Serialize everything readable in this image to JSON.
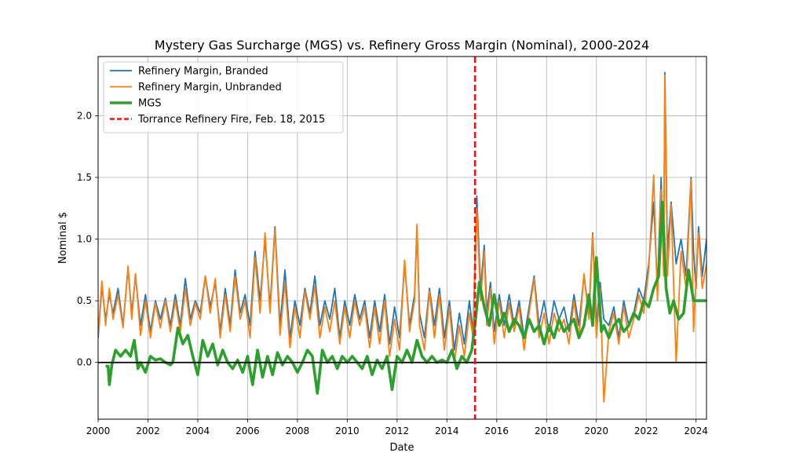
{
  "chart_data": {
    "type": "line",
    "title": "Mystery Gas Surcharge (MGS) vs. Refinery Gross Margin (Nominal), 2000-2024",
    "xlabel": "Date",
    "ylabel": "Nominal $",
    "xlim": [
      2000.0,
      2024.42
    ],
    "ylim": [
      -0.46,
      2.48
    ],
    "x_ticks": [
      2000,
      2002,
      2004,
      2006,
      2008,
      2010,
      2012,
      2014,
      2016,
      2018,
      2020,
      2022,
      2024
    ],
    "x_tick_labels": [
      "2000",
      "2002",
      "2004",
      "2006",
      "2008",
      "2010",
      "2012",
      "2014",
      "2016",
      "2018",
      "2020",
      "2022",
      "2024"
    ],
    "y_ticks": [
      0.0,
      0.5,
      1.0,
      1.5,
      2.0
    ],
    "y_tick_labels": [
      "0.0",
      "0.5",
      "1.0",
      "1.5",
      "2.0"
    ],
    "grid": true,
    "legend_position": "top-left",
    "zero_line": 0.0,
    "event": {
      "name": "Torrance Refinery Fire, Feb. 18, 2015",
      "x": 2015.13,
      "color": "#ee1111"
    },
    "series": [
      {
        "name": "Refinery Margin, Branded",
        "color": "#1f77b4",
        "x": [
          2000.0,
          2000.15,
          2000.3,
          2000.45,
          2000.6,
          2000.8,
          2001.0,
          2001.2,
          2001.35,
          2001.5,
          2001.7,
          2001.9,
          2002.1,
          2002.3,
          2002.5,
          2002.7,
          2002.9,
          2003.1,
          2003.3,
          2003.5,
          2003.7,
          2003.9,
          2004.1,
          2004.3,
          2004.5,
          2004.7,
          2004.9,
          2005.1,
          2005.3,
          2005.5,
          2005.7,
          2005.9,
          2006.1,
          2006.3,
          2006.5,
          2006.7,
          2006.9,
          2007.1,
          2007.3,
          2007.5,
          2007.7,
          2007.9,
          2008.1,
          2008.3,
          2008.5,
          2008.7,
          2008.9,
          2009.1,
          2009.3,
          2009.5,
          2009.7,
          2009.9,
          2010.1,
          2010.3,
          2010.5,
          2010.7,
          2010.9,
          2011.1,
          2011.3,
          2011.5,
          2011.7,
          2011.9,
          2012.1,
          2012.3,
          2012.5,
          2012.7,
          2012.8,
          2012.9,
          2013.1,
          2013.3,
          2013.5,
          2013.7,
          2013.9,
          2014.1,
          2014.3,
          2014.5,
          2014.7,
          2014.9,
          2015.05,
          2015.2,
          2015.35,
          2015.5,
          2015.6,
          2015.75,
          2015.9,
          2016.1,
          2016.3,
          2016.5,
          2016.7,
          2016.9,
          2017.1,
          2017.3,
          2017.5,
          2017.7,
          2017.9,
          2018.1,
          2018.3,
          2018.5,
          2018.7,
          2018.9,
          2019.1,
          2019.3,
          2019.5,
          2019.7,
          2019.85,
          2020.0,
          2020.15,
          2020.3,
          2020.5,
          2020.7,
          2020.9,
          2021.1,
          2021.3,
          2021.5,
          2021.7,
          2021.9,
          2022.1,
          2022.3,
          2022.45,
          2022.6,
          2022.7,
          2022.75,
          2022.85,
          2023.0,
          2023.2,
          2023.4,
          2023.6,
          2023.8,
          2023.9,
          2024.0,
          2024.1,
          2024.25,
          2024.42
        ],
        "values": [
          0.2,
          0.62,
          0.35,
          0.55,
          0.4,
          0.6,
          0.3,
          0.76,
          0.4,
          0.7,
          0.3,
          0.55,
          0.25,
          0.5,
          0.35,
          0.52,
          0.3,
          0.55,
          0.3,
          0.68,
          0.35,
          0.5,
          0.4,
          0.7,
          0.45,
          0.65,
          0.25,
          0.6,
          0.3,
          0.75,
          0.4,
          0.55,
          0.3,
          0.9,
          0.5,
          1.0,
          0.45,
          1.1,
          0.3,
          0.75,
          0.2,
          0.5,
          0.3,
          0.6,
          0.4,
          0.7,
          0.3,
          0.5,
          0.35,
          0.6,
          0.2,
          0.5,
          0.3,
          0.55,
          0.35,
          0.5,
          0.2,
          0.5,
          0.25,
          0.55,
          0.15,
          0.45,
          0.2,
          0.8,
          0.3,
          0.55,
          1.1,
          0.4,
          0.2,
          0.6,
          0.3,
          0.6,
          0.2,
          0.5,
          0.1,
          0.4,
          0.15,
          0.5,
          0.25,
          1.35,
          0.6,
          0.95,
          0.4,
          0.65,
          0.25,
          0.55,
          0.3,
          0.55,
          0.3,
          0.5,
          0.2,
          0.45,
          0.7,
          0.3,
          0.5,
          0.25,
          0.5,
          0.35,
          0.45,
          0.25,
          0.55,
          0.3,
          0.7,
          0.4,
          1.05,
          0.3,
          0.65,
          0.35,
          0.3,
          0.45,
          0.2,
          0.5,
          0.3,
          0.4,
          0.6,
          0.5,
          0.8,
          1.3,
          0.6,
          1.5,
          0.8,
          2.35,
          0.9,
          1.3,
          0.8,
          1.0,
          0.7,
          1.5,
          0.9,
          0.6,
          1.1,
          0.7,
          1.0
        ]
      },
      {
        "name": "Refinery Margin, Unbranded",
        "color": "#ff7f0e",
        "x": [
          2000.0,
          2000.15,
          2000.3,
          2000.45,
          2000.6,
          2000.8,
          2001.0,
          2001.2,
          2001.35,
          2001.5,
          2001.7,
          2001.9,
          2002.1,
          2002.3,
          2002.5,
          2002.7,
          2002.9,
          2003.1,
          2003.3,
          2003.5,
          2003.7,
          2003.9,
          2004.1,
          2004.3,
          2004.5,
          2004.7,
          2004.9,
          2005.1,
          2005.3,
          2005.5,
          2005.7,
          2005.9,
          2006.1,
          2006.3,
          2006.5,
          2006.7,
          2006.9,
          2007.1,
          2007.3,
          2007.5,
          2007.7,
          2007.9,
          2008.1,
          2008.3,
          2008.5,
          2008.7,
          2008.9,
          2009.1,
          2009.3,
          2009.5,
          2009.7,
          2009.9,
          2010.1,
          2010.3,
          2010.5,
          2010.7,
          2010.9,
          2011.1,
          2011.3,
          2011.5,
          2011.7,
          2011.9,
          2012.1,
          2012.3,
          2012.5,
          2012.7,
          2012.8,
          2012.9,
          2013.1,
          2013.3,
          2013.5,
          2013.7,
          2013.9,
          2014.1,
          2014.3,
          2014.5,
          2014.7,
          2014.9,
          2015.05,
          2015.2,
          2015.35,
          2015.5,
          2015.6,
          2015.75,
          2015.9,
          2016.1,
          2016.3,
          2016.5,
          2016.7,
          2016.9,
          2017.1,
          2017.3,
          2017.5,
          2017.7,
          2017.9,
          2018.1,
          2018.3,
          2018.5,
          2018.7,
          2018.9,
          2019.1,
          2019.3,
          2019.5,
          2019.7,
          2019.85,
          2020.0,
          2020.15,
          2020.3,
          2020.5,
          2020.7,
          2020.9,
          2021.1,
          2021.3,
          2021.5,
          2021.7,
          2021.9,
          2022.1,
          2022.3,
          2022.45,
          2022.6,
          2022.7,
          2022.75,
          2022.85,
          2023.0,
          2023.2,
          2023.4,
          2023.6,
          2023.8,
          2023.9,
          2024.0,
          2024.1,
          2024.25,
          2024.42
        ],
        "values": [
          0.22,
          0.66,
          0.3,
          0.6,
          0.35,
          0.55,
          0.28,
          0.78,
          0.35,
          0.72,
          0.22,
          0.5,
          0.2,
          0.48,
          0.28,
          0.5,
          0.25,
          0.5,
          0.25,
          0.6,
          0.3,
          0.48,
          0.35,
          0.7,
          0.4,
          0.68,
          0.2,
          0.55,
          0.25,
          0.7,
          0.35,
          0.5,
          0.2,
          0.85,
          0.4,
          1.05,
          0.4,
          1.08,
          0.22,
          0.65,
          0.12,
          0.45,
          0.2,
          0.58,
          0.35,
          0.62,
          0.2,
          0.45,
          0.25,
          0.5,
          0.15,
          0.45,
          0.2,
          0.5,
          0.3,
          0.45,
          0.12,
          0.45,
          0.15,
          0.5,
          0.05,
          0.35,
          0.1,
          0.83,
          0.25,
          0.5,
          1.12,
          0.3,
          0.1,
          0.58,
          0.2,
          0.55,
          0.1,
          0.45,
          0.0,
          0.3,
          0.05,
          0.4,
          0.2,
          1.25,
          0.5,
          0.9,
          0.3,
          0.6,
          0.15,
          0.5,
          0.2,
          0.48,
          0.25,
          0.45,
          0.1,
          0.4,
          0.68,
          0.2,
          0.4,
          0.15,
          0.4,
          0.25,
          0.35,
          0.15,
          0.5,
          0.2,
          0.72,
          0.35,
          1.04,
          0.2,
          0.6,
          -0.32,
          0.25,
          0.4,
          0.15,
          0.45,
          0.2,
          0.35,
          0.55,
          0.4,
          0.75,
          1.52,
          0.5,
          1.4,
          0.7,
          2.33,
          0.7,
          1.28,
          0.0,
          0.9,
          0.6,
          1.48,
          0.25,
          0.7,
          1.05,
          0.6,
          0.8
        ]
      },
      {
        "name": "MGS",
        "color": "#2ca02c",
        "x": [
          2000.3,
          2000.4,
          2000.45,
          2000.55,
          2000.7,
          2000.9,
          2001.1,
          2001.3,
          2001.45,
          2001.6,
          2001.7,
          2001.9,
          2002.1,
          2002.3,
          2002.5,
          2002.7,
          2002.9,
          2003.0,
          2003.2,
          2003.4,
          2003.6,
          2003.8,
          2004.0,
          2004.2,
          2004.4,
          2004.6,
          2004.8,
          2005.0,
          2005.2,
          2005.4,
          2005.6,
          2005.8,
          2006.0,
          2006.2,
          2006.4,
          2006.6,
          2006.8,
          2007.0,
          2007.2,
          2007.4,
          2007.6,
          2007.8,
          2008.0,
          2008.2,
          2008.4,
          2008.6,
          2008.8,
          2009.0,
          2009.2,
          2009.4,
          2009.6,
          2009.8,
          2010.0,
          2010.2,
          2010.4,
          2010.6,
          2010.8,
          2011.0,
          2011.2,
          2011.4,
          2011.6,
          2011.8,
          2012.0,
          2012.2,
          2012.4,
          2012.6,
          2012.8,
          2013.0,
          2013.2,
          2013.4,
          2013.6,
          2013.8,
          2014.0,
          2014.2,
          2014.4,
          2014.6,
          2014.8,
          2015.0,
          2015.15,
          2015.3,
          2015.5,
          2015.7,
          2015.9,
          2016.1,
          2016.3,
          2016.5,
          2016.7,
          2016.9,
          2017.1,
          2017.3,
          2017.5,
          2017.7,
          2017.9,
          2018.1,
          2018.3,
          2018.5,
          2018.7,
          2018.9,
          2019.1,
          2019.3,
          2019.5,
          2019.7,
          2019.85,
          2020.0,
          2020.2,
          2020.3,
          2020.5,
          2020.7,
          2020.9,
          2021.1,
          2021.3,
          2021.5,
          2021.7,
          2021.9,
          2022.1,
          2022.3,
          2022.5,
          2022.65,
          2022.8,
          2022.95,
          2023.1,
          2023.3,
          2023.5,
          2023.7,
          2023.9,
          2024.1,
          2024.42
        ],
        "values": [
          -0.03,
          -0.03,
          -0.18,
          -0.02,
          0.1,
          0.05,
          0.1,
          0.05,
          0.18,
          -0.05,
          0.0,
          -0.08,
          0.05,
          0.02,
          0.03,
          0.0,
          -0.02,
          0.0,
          0.28,
          0.15,
          0.22,
          0.05,
          -0.1,
          0.18,
          0.05,
          0.15,
          -0.02,
          0.1,
          0.0,
          -0.05,
          0.02,
          -0.08,
          0.05,
          -0.18,
          0.1,
          -0.12,
          0.05,
          -0.1,
          0.08,
          -0.02,
          0.05,
          0.0,
          -0.08,
          0.0,
          0.1,
          0.05,
          -0.25,
          0.1,
          0.0,
          0.05,
          -0.05,
          0.05,
          0.0,
          0.05,
          0.0,
          -0.05,
          0.05,
          -0.1,
          0.02,
          -0.05,
          0.05,
          -0.22,
          0.05,
          0.0,
          0.1,
          0.0,
          0.18,
          0.05,
          0.0,
          0.05,
          0.0,
          0.02,
          0.0,
          0.1,
          -0.05,
          0.05,
          0.0,
          0.1,
          0.35,
          0.65,
          0.45,
          0.3,
          0.55,
          0.3,
          0.4,
          0.25,
          0.35,
          0.3,
          0.2,
          0.35,
          0.25,
          0.3,
          0.15,
          0.3,
          0.2,
          0.35,
          0.25,
          0.3,
          0.35,
          0.2,
          0.3,
          0.55,
          0.3,
          0.85,
          0.25,
          0.3,
          0.2,
          0.3,
          0.35,
          0.25,
          0.3,
          0.4,
          0.35,
          0.5,
          0.45,
          0.6,
          0.7,
          1.3,
          0.6,
          0.4,
          0.5,
          0.35,
          0.4,
          0.75,
          0.5,
          0.5,
          0.5
        ]
      }
    ]
  }
}
